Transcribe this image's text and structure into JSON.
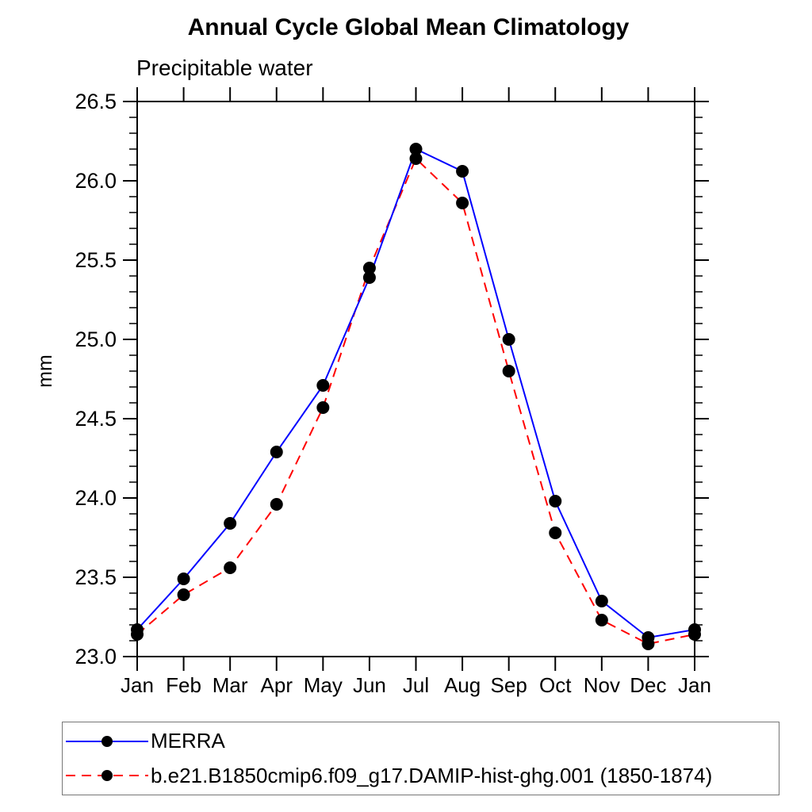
{
  "chart_data": {
    "type": "line",
    "title": "Annual Cycle Global Mean Climatology",
    "subtitle": "Precipitable water",
    "ylabel": "mm",
    "categories": [
      "Jan",
      "Feb",
      "Mar",
      "Apr",
      "May",
      "Jun",
      "Jul",
      "Aug",
      "Sep",
      "Oct",
      "Nov",
      "Dec",
      "Jan"
    ],
    "ylim": [
      23.0,
      26.5
    ],
    "ytick_step": 0.5,
    "yminor_step": 0.1,
    "grid": false,
    "legend_position": "bottom",
    "axis_color": "#000000",
    "marker_color": "#000000",
    "series": [
      {
        "name": "MERRA",
        "color": "#0000ff",
        "style": "solid",
        "marker": "filled-circle",
        "values": [
          23.17,
          23.49,
          23.84,
          24.29,
          24.71,
          25.39,
          26.2,
          26.06,
          25.0,
          23.98,
          23.35,
          23.12,
          23.17
        ]
      },
      {
        "name": "b.e21.B1850cmip6.f09_g17.DAMIP-hist-ghg.001 (1850-1874)",
        "color": "#ff0000",
        "style": "dashed",
        "marker": "filled-circle",
        "values": [
          23.14,
          23.39,
          23.56,
          23.96,
          24.57,
          25.45,
          26.14,
          25.86,
          24.8,
          23.78,
          23.23,
          23.08,
          23.14
        ]
      }
    ]
  }
}
